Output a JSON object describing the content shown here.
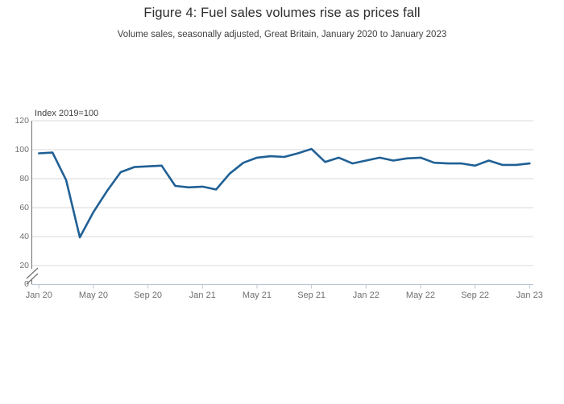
{
  "chart_data": {
    "type": "line",
    "title": "Figure 4: Fuel sales volumes rise as prices fall",
    "subtitle": "Volume sales, seasonally adjusted, Great Britain, January 2020 to January 2023",
    "y_axis_note": "Index 2019=100",
    "x": [
      "2020-01",
      "2020-02",
      "2020-03",
      "2020-04",
      "2020-05",
      "2020-06",
      "2020-07",
      "2020-08",
      "2020-09",
      "2020-10",
      "2020-11",
      "2020-12",
      "2021-01",
      "2021-02",
      "2021-03",
      "2021-04",
      "2021-05",
      "2021-06",
      "2021-07",
      "2021-08",
      "2021-09",
      "2021-10",
      "2021-11",
      "2021-12",
      "2022-01",
      "2022-02",
      "2022-03",
      "2022-04",
      "2022-05",
      "2022-06",
      "2022-07",
      "2022-08",
      "2022-09",
      "2022-10",
      "2022-11",
      "2022-12",
      "2023-01"
    ],
    "series": [
      {
        "name": "Fuel sales volume index, seasonally adjusted",
        "values": [
          97.5,
          98,
          79,
          39.5,
          57,
          71.5,
          84.5,
          88,
          88.5,
          89,
          75,
          74,
          74.5,
          72.5,
          83.5,
          91,
          94.5,
          95.5,
          95,
          97.5,
          100.5,
          91.5,
          94.5,
          90.5,
          92.5,
          94.5,
          92.5,
          94,
          94.5,
          91,
          90.5,
          90.5,
          89,
          92.5,
          89.5,
          89.5,
          90.5
        ]
      }
    ],
    "x_ticks": {
      "month_indices": [
        0,
        4,
        8,
        12,
        16,
        20,
        24,
        28,
        32,
        36
      ],
      "labels": [
        "Jan 20",
        "May 20",
        "Sep 20",
        "Jan 21",
        "May 21",
        "Sep 21",
        "Jan 22",
        "May 22",
        "Sep 22",
        "Jan 23"
      ]
    },
    "yticks": [
      0,
      20,
      40,
      60,
      80,
      100,
      120
    ],
    "ylim": [
      0,
      120
    ],
    "y_axis_break": true,
    "grid": true,
    "legend": "none",
    "colors": {
      "line": "#206095",
      "grid": "#d9d9d9",
      "axis": "#6f7071",
      "baseline": "#b9c6d2",
      "tick": "#b9c6d2",
      "title_text": "#2e2d2e",
      "label_text": "#707071"
    }
  }
}
